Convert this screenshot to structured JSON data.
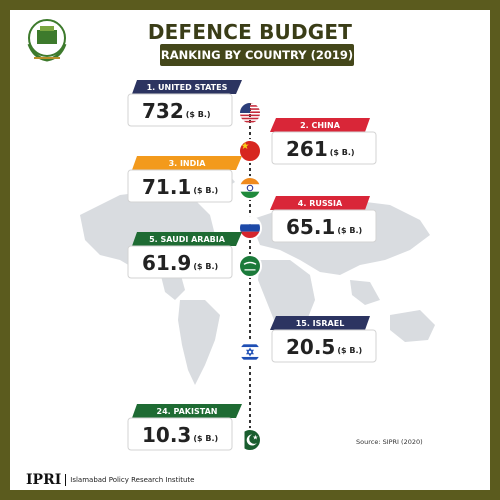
{
  "header": {
    "title": "DEFENCE BUDGET",
    "subtitle": "RANKING BY COUNTRY (2019)"
  },
  "source": "Source: SIPRI (2020)",
  "footer": {
    "abbr": "IPRI",
    "name": "Islamabad Policy Research Institute"
  },
  "colors": {
    "frame": "#5b5b1e",
    "navy": "#2c3461",
    "red": "#d92638",
    "orange": "#f39a1c",
    "green": "#1e6b33"
  },
  "chart_data": {
    "type": "bar",
    "unit": "($ B.)",
    "entries": [
      {
        "label": "1. UNITED STATES",
        "value": "732",
        "flag": "flag-usa-icon",
        "side": "left",
        "color": "#2c3461"
      },
      {
        "label": "2. CHINA",
        "value": "261",
        "flag": "flag-china-icon",
        "side": "right",
        "color": "#d92638"
      },
      {
        "label": "3. INDIA",
        "value": "71.1",
        "flag": "flag-india-icon",
        "side": "left",
        "color": "#f39a1c"
      },
      {
        "label": "4. RUSSIA",
        "value": "65.1",
        "flag": "flag-russia-icon",
        "side": "right",
        "color": "#d92638"
      },
      {
        "label": "5. SAUDI ARABIA",
        "value": "61.9",
        "flag": "flag-saudi-arabia-icon",
        "side": "left",
        "color": "#1e6b33"
      },
      {
        "label": "15. ISRAEL",
        "value": "20.5",
        "flag": "flag-israel-icon",
        "side": "right",
        "color": "#2c3461"
      },
      {
        "label": "24. PAKISTAN",
        "value": "10.3",
        "flag": "flag-pakistan-icon",
        "side": "left",
        "color": "#1e6b33"
      }
    ]
  }
}
